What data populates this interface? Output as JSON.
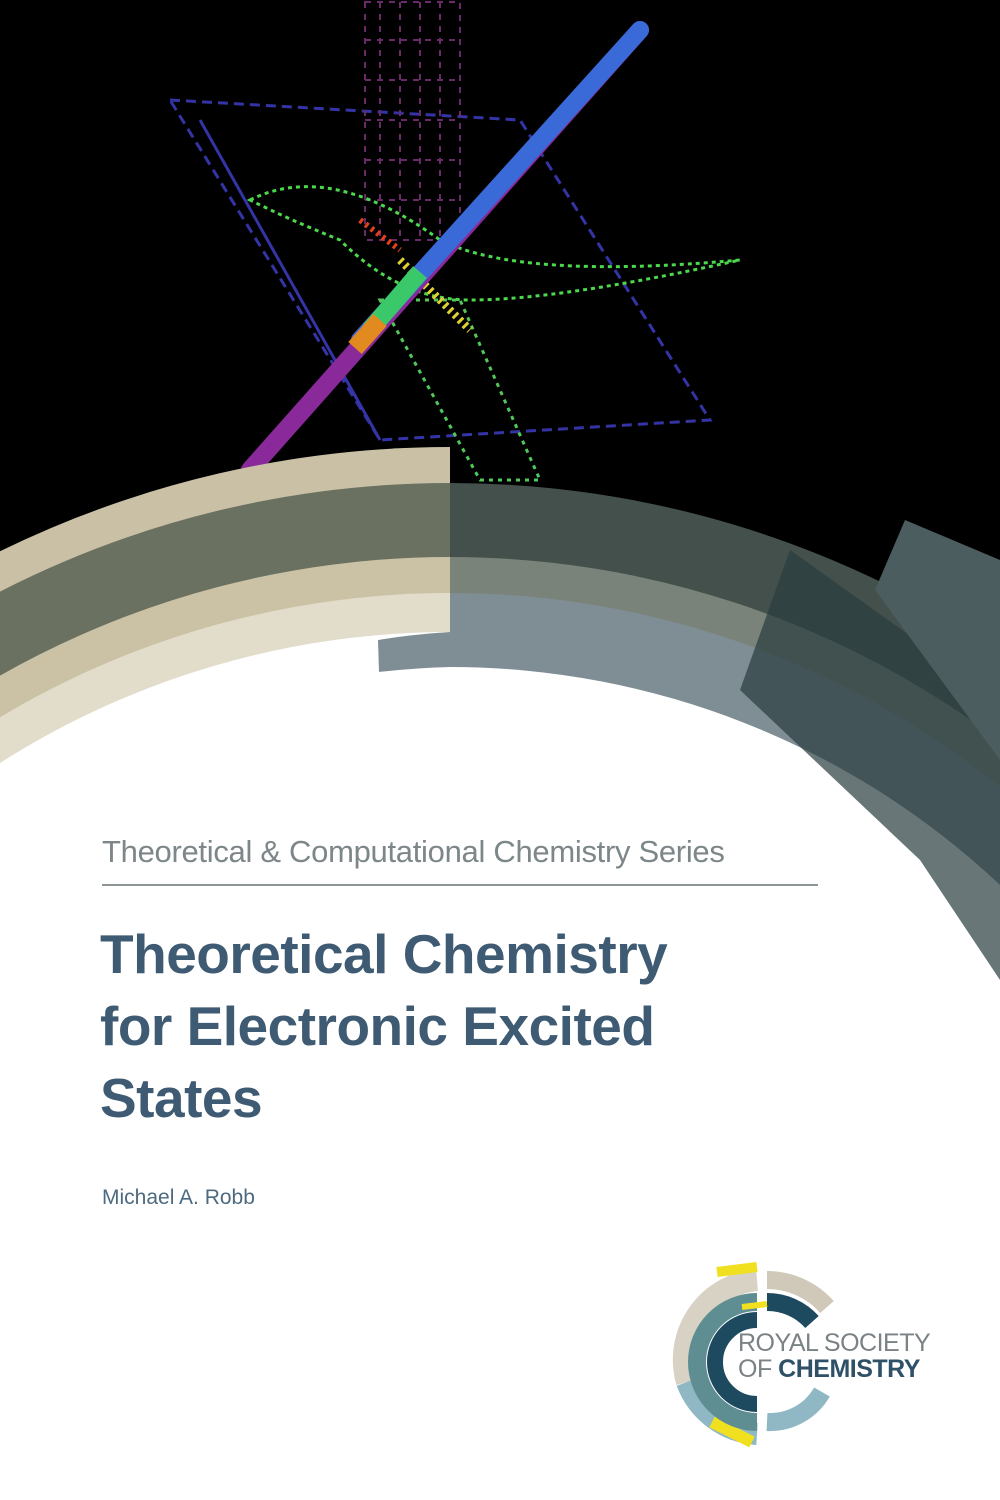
{
  "cover": {
    "series": "Theoretical & Computational Chemistry Series",
    "title_lines": [
      "Theoretical Chemistry",
      "for Electronic Excited",
      "States"
    ],
    "author": "Michael A. Robb"
  },
  "publisher": {
    "line1": "ROYAL SOCIETY",
    "line2_prefix": "OF ",
    "line2_bold": "CHEMISTRY"
  },
  "colors": {
    "title": "#3e5b73",
    "series": "#7d8688",
    "background_top": "#000000"
  }
}
